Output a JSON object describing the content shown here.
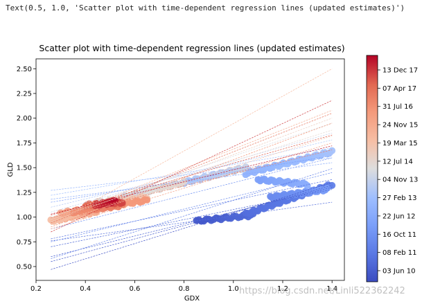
{
  "console_output": "Text(0.5, 1.0, 'Scatter plot with time-dependent regression lines (updated estimates)')",
  "watermark": "https://blog.csdn.net/Linli522362242",
  "chart_data": {
    "type": "scatter",
    "title": "Scatter plot with time-dependent regression lines (updated estimates)",
    "xlabel": "GDX",
    "ylabel": "GLD",
    "xlim": [
      0.2,
      1.45
    ],
    "ylim": [
      0.36,
      2.6
    ],
    "xticks": [
      "0.2",
      "0.4",
      "0.6",
      "0.8",
      "1.0",
      "1.2",
      "1.4"
    ],
    "yticks": [
      "0.50",
      "0.75",
      "1.00",
      "1.25",
      "1.50",
      "1.75",
      "2.00",
      "2.25",
      "2.50"
    ],
    "colormap": "coolwarm",
    "colors": {
      "low": "#3b4cc0",
      "mid": "#dddddd",
      "high": "#b40426"
    },
    "colorbar_ticks": [
      "03 Jun 10",
      "08 Feb 11",
      "16 Oct 11",
      "22 Jun 12",
      "27 Feb 13",
      "04 Nov 13",
      "12 Jul 14",
      "19 Mar 15",
      "24 Nov 15",
      "31 Jul 16",
      "07 Apr 17",
      "13 Dec 17"
    ],
    "clusters": [
      {
        "t": 0.03,
        "from": [
          0.85,
          0.96
        ],
        "to": [
          1.08,
          1.02
        ],
        "n": 24
      },
      {
        "t": 0.1,
        "from": [
          1.05,
          1.03
        ],
        "to": [
          1.4,
          1.33
        ],
        "n": 44
      },
      {
        "t": 0.18,
        "from": [
          1.15,
          1.2
        ],
        "to": [
          1.38,
          1.28
        ],
        "n": 30
      },
      {
        "t": 0.25,
        "from": [
          1.1,
          1.38
        ],
        "to": [
          1.3,
          1.33
        ],
        "n": 24
      },
      {
        "t": 0.33,
        "from": [
          1.05,
          1.44
        ],
        "to": [
          1.4,
          1.66
        ],
        "n": 40
      },
      {
        "t": 0.4,
        "from": [
          0.8,
          1.35
        ],
        "to": [
          1.05,
          1.5
        ],
        "n": 28
      },
      {
        "t": 0.47,
        "from": [
          0.55,
          1.2
        ],
        "to": [
          0.8,
          1.35
        ],
        "n": 24
      },
      {
        "t": 0.54,
        "from": [
          0.45,
          1.15
        ],
        "to": [
          0.65,
          1.2
        ],
        "n": 18
      },
      {
        "t": 0.62,
        "from": [
          0.26,
          0.96
        ],
        "to": [
          0.45,
          1.06
        ],
        "n": 30
      },
      {
        "t": 0.7,
        "from": [
          0.3,
          1.04
        ],
        "to": [
          0.65,
          1.17
        ],
        "n": 38
      },
      {
        "t": 0.78,
        "from": [
          0.35,
          1.05
        ],
        "to": [
          0.55,
          1.12
        ],
        "n": 26
      },
      {
        "t": 0.86,
        "from": [
          0.4,
          1.12
        ],
        "to": [
          0.55,
          1.15
        ],
        "n": 20
      },
      {
        "t": 0.94,
        "from": [
          0.44,
          1.12
        ],
        "to": [
          0.52,
          1.16
        ],
        "n": 14
      }
    ],
    "regression_lines": [
      {
        "t": 0.02,
        "x": [
          0.26,
          1.4
        ],
        "y": [
          0.47,
          1.35
        ]
      },
      {
        "t": 0.04,
        "x": [
          0.26,
          1.4
        ],
        "y": [
          0.55,
          1.32
        ]
      },
      {
        "t": 0.06,
        "x": [
          0.26,
          1.4
        ],
        "y": [
          0.6,
          1.3
        ]
      },
      {
        "t": 0.08,
        "x": [
          0.26,
          1.4
        ],
        "y": [
          0.7,
          1.28
        ]
      },
      {
        "t": 0.1,
        "x": [
          0.26,
          1.4
        ],
        "y": [
          0.76,
          1.15
        ]
      },
      {
        "t": 0.12,
        "x": [
          0.26,
          1.4
        ],
        "y": [
          0.78,
          1.38
        ]
      },
      {
        "t": 0.15,
        "x": [
          0.26,
          1.4
        ],
        "y": [
          0.58,
          1.49
        ]
      },
      {
        "t": 0.18,
        "x": [
          0.26,
          1.4
        ],
        "y": [
          0.75,
          1.45
        ]
      },
      {
        "t": 0.21,
        "x": [
          0.26,
          1.4
        ],
        "y": [
          0.88,
          1.6
        ]
      },
      {
        "t": 0.25,
        "x": [
          0.26,
          1.4
        ],
        "y": [
          1.15,
          1.62
        ]
      },
      {
        "t": 0.29,
        "x": [
          0.26,
          1.4
        ],
        "y": [
          1.18,
          1.55
        ]
      },
      {
        "t": 0.33,
        "x": [
          0.26,
          1.4
        ],
        "y": [
          1.27,
          1.6
        ]
      },
      {
        "t": 0.37,
        "x": [
          0.26,
          1.4
        ],
        "y": [
          1.22,
          1.7
        ]
      },
      {
        "t": 0.41,
        "x": [
          0.26,
          1.4
        ],
        "y": [
          1.1,
          1.78
        ]
      },
      {
        "t": 0.45,
        "x": [
          0.26,
          1.4
        ],
        "y": [
          1.05,
          1.85
        ]
      },
      {
        "t": 0.49,
        "x": [
          0.26,
          1.4
        ],
        "y": [
          1.0,
          1.95
        ]
      },
      {
        "t": 0.53,
        "x": [
          0.26,
          1.4
        ],
        "y": [
          0.98,
          1.88
        ]
      },
      {
        "t": 0.57,
        "x": [
          0.26,
          1.4
        ],
        "y": [
          0.95,
          2.0
        ]
      },
      {
        "t": 0.61,
        "x": [
          0.26,
          1.4
        ],
        "y": [
          0.93,
          1.82
        ]
      },
      {
        "t": 0.65,
        "x": [
          0.26,
          1.4
        ],
        "y": [
          0.92,
          2.5
        ]
      },
      {
        "t": 0.69,
        "x": [
          0.26,
          1.4
        ],
        "y": [
          0.96,
          2.08
        ]
      },
      {
        "t": 0.73,
        "x": [
          0.26,
          1.4
        ],
        "y": [
          0.88,
          1.75
        ]
      },
      {
        "t": 0.77,
        "x": [
          0.26,
          1.4
        ],
        "y": [
          0.9,
          1.95
        ]
      },
      {
        "t": 0.81,
        "x": [
          0.26,
          1.4
        ],
        "y": [
          0.99,
          1.68
        ]
      },
      {
        "t": 0.85,
        "x": [
          0.26,
          1.4
        ],
        "y": [
          0.94,
          2.05
        ]
      },
      {
        "t": 0.89,
        "x": [
          0.26,
          1.4
        ],
        "y": [
          1.02,
          1.83
        ]
      },
      {
        "t": 0.93,
        "x": [
          0.26,
          1.4
        ],
        "y": [
          0.85,
          2.18
        ]
      },
      {
        "t": 0.97,
        "x": [
          0.26,
          1.4
        ],
        "y": [
          1.03,
          1.72
        ]
      }
    ]
  }
}
